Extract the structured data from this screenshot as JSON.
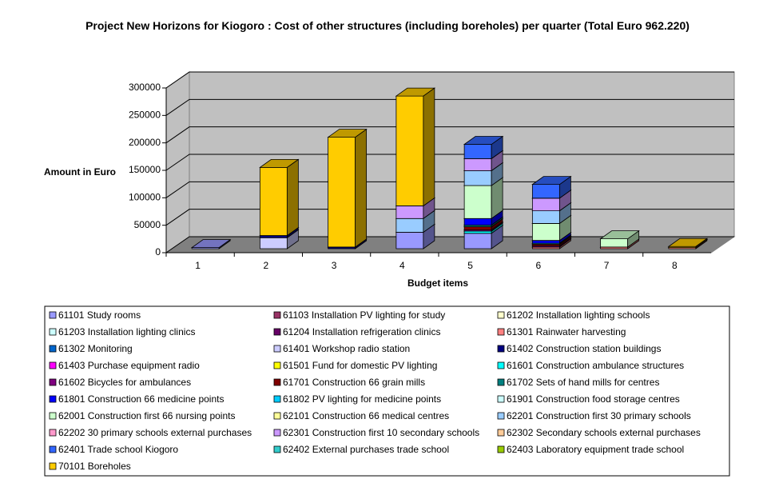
{
  "chart_data": {
    "type": "bar3d_stacked",
    "title": "Project New Horizons for Kiogoro : Cost of other structures (including boreholes) per quarter (Total Euro 962.220)",
    "y_label": "Amount in Euro",
    "x_label": "Budget items",
    "categories": [
      "1",
      "2",
      "3",
      "4",
      "5",
      "6",
      "7",
      "8"
    ],
    "ylim": [
      0,
      300000
    ],
    "yticks": [
      0,
      50000,
      100000,
      150000,
      200000,
      250000,
      300000
    ],
    "grid": true,
    "series": [
      {
        "name": "61101 Study rooms",
        "color": "#9999ff",
        "values": [
          2000,
          0,
          0,
          30000,
          28000,
          0,
          0,
          0
        ]
      },
      {
        "name": "61103 Installation PV lighting for study",
        "color": "#993366",
        "values": [
          0,
          0,
          0,
          0,
          0,
          0,
          0,
          0
        ]
      },
      {
        "name": "61202 Installation lighting schools",
        "color": "#ffffcc",
        "values": [
          0,
          0,
          0,
          0,
          0,
          0,
          0,
          0
        ]
      },
      {
        "name": "61203 Installation lighting clinics",
        "color": "#ccffff",
        "values": [
          0,
          0,
          0,
          0,
          0,
          0,
          0,
          0
        ]
      },
      {
        "name": "61204 Installation refrigeration clinics",
        "color": "#660066",
        "values": [
          0,
          0,
          0,
          0,
          0,
          0,
          0,
          0
        ]
      },
      {
        "name": "61301 Rainwater harvesting",
        "color": "#ff8080",
        "values": [
          0,
          0,
          0,
          0,
          0,
          3000,
          3000,
          2000
        ]
      },
      {
        "name": "61302 Monitoring",
        "color": "#0066cc",
        "values": [
          0,
          0,
          0,
          0,
          0,
          0,
          0,
          0
        ]
      },
      {
        "name": "61401 Workshop radio station",
        "color": "#ccccff",
        "values": [
          0,
          20000,
          0,
          0,
          0,
          0,
          0,
          0
        ]
      },
      {
        "name": "61402 Construction station buildings",
        "color": "#000080",
        "values": [
          0,
          4000,
          3000,
          0,
          0,
          0,
          0,
          0
        ]
      },
      {
        "name": "61403 Purchase equipment radio",
        "color": "#ff00ff",
        "values": [
          0,
          0,
          0,
          0,
          0,
          0,
          0,
          0
        ]
      },
      {
        "name": "61501 Fund for domestic PV lighting",
        "color": "#ffff00",
        "values": [
          0,
          0,
          0,
          0,
          0,
          0,
          0,
          0
        ]
      },
      {
        "name": "61601 Construction ambulance structures",
        "color": "#00ffff",
        "values": [
          0,
          0,
          0,
          0,
          4000,
          0,
          0,
          0
        ]
      },
      {
        "name": "61602 Bicycles for ambulances",
        "color": "#800080",
        "values": [
          0,
          0,
          0,
          0,
          2000,
          2000,
          0,
          0
        ]
      },
      {
        "name": "61701 Construction 66 grain mills",
        "color": "#800000",
        "values": [
          0,
          0,
          0,
          0,
          6000,
          3000,
          0,
          0
        ]
      },
      {
        "name": "61702 Sets of hand mills for centres",
        "color": "#008080",
        "values": [
          0,
          0,
          0,
          0,
          3000,
          2000,
          0,
          0
        ]
      },
      {
        "name": "61801 Construction 66 medicine points",
        "color": "#0000ff",
        "values": [
          0,
          0,
          0,
          0,
          12000,
          5000,
          0,
          0
        ]
      },
      {
        "name": "61802 PV lighting for medicine points",
        "color": "#00ccff",
        "values": [
          0,
          0,
          0,
          0,
          0,
          0,
          0,
          0
        ]
      },
      {
        "name": "61901 Construction food storage centres",
        "color": "#ccffff",
        "values": [
          0,
          0,
          0,
          0,
          0,
          0,
          0,
          0
        ]
      },
      {
        "name": "62001 Construction first 66 nursing points",
        "color": "#ccffcc",
        "values": [
          0,
          0,
          0,
          0,
          60000,
          31000,
          15000,
          0
        ]
      },
      {
        "name": "62101 Construction 66 medical centres",
        "color": "#ffff99",
        "values": [
          0,
          0,
          0,
          0,
          0,
          0,
          0,
          0
        ]
      },
      {
        "name": "62201 Construction first 30 primary schools",
        "color": "#99ccff",
        "values": [
          0,
          0,
          0,
          25000,
          27000,
          23000,
          0,
          0
        ]
      },
      {
        "name": "62202 30 primary schools external purchases",
        "color": "#ff99cc",
        "values": [
          0,
          0,
          0,
          0,
          0,
          0,
          0,
          0
        ]
      },
      {
        "name": "62301 Construction first 10 secondary schools",
        "color": "#cc99ff",
        "values": [
          0,
          0,
          0,
          23000,
          22000,
          23000,
          0,
          0
        ]
      },
      {
        "name": "62302 Secondary schools external purchases",
        "color": "#ffcc99",
        "values": [
          0,
          0,
          0,
          0,
          0,
          0,
          0,
          0
        ]
      },
      {
        "name": "62401 Trade school Kiogoro",
        "color": "#3366ff",
        "values": [
          0,
          0,
          0,
          0,
          26000,
          25000,
          0,
          0
        ]
      },
      {
        "name": "62402 External purchases trade school",
        "color": "#33cccc",
        "values": [
          0,
          0,
          0,
          0,
          0,
          0,
          0,
          0
        ]
      },
      {
        "name": "62403 Laboratory equipment trade school",
        "color": "#99cc00",
        "values": [
          0,
          0,
          0,
          0,
          0,
          0,
          0,
          0
        ]
      },
      {
        "name": "70101 Boreholes",
        "color": "#ffcc00",
        "values": [
          0,
          124000,
          200000,
          200000,
          0,
          0,
          0,
          2000
        ]
      }
    ]
  }
}
